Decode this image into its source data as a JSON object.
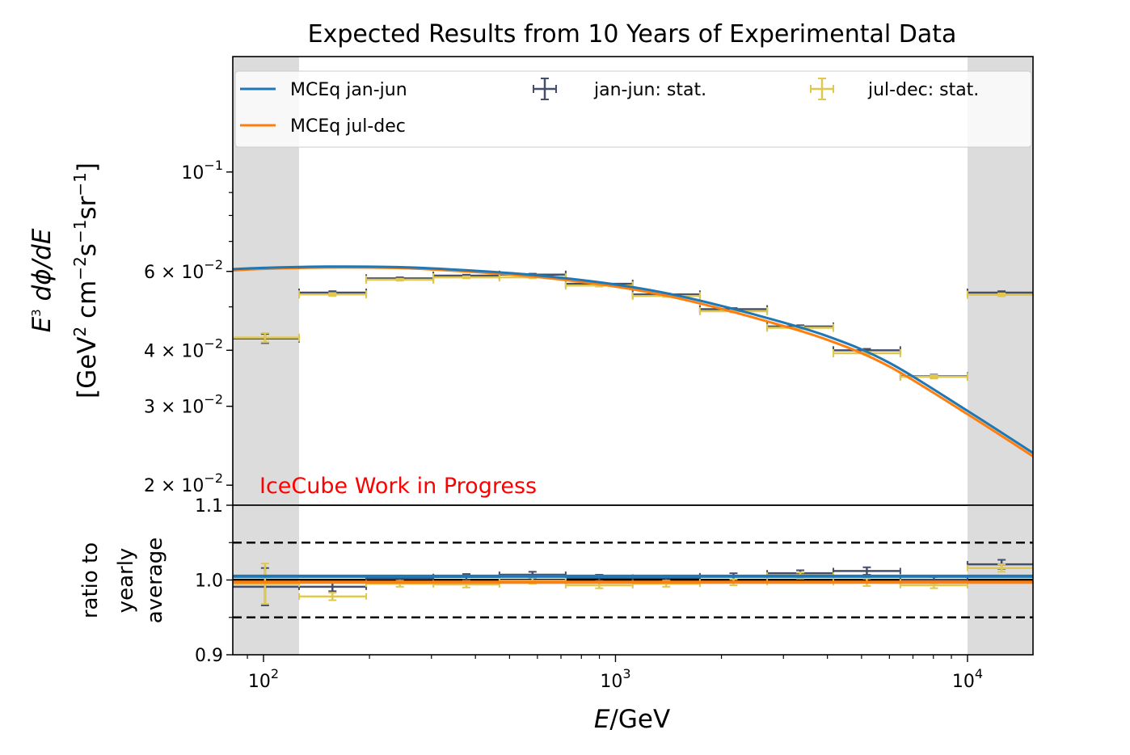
{
  "chart_data": [
    {
      "panel": "main",
      "type": "line",
      "title": "Expected Results from 10 Years of Experimental Data",
      "xlabel": "E/GeV",
      "ylabel_line1": "E³ dΦ/dE",
      "ylabel_line2": "[GeV² cm⁻²s⁻¹sr⁻¹]",
      "xscale": "log",
      "yscale": "log",
      "xlim": [
        81.8,
        15350
      ],
      "ylim": [
        0.01804,
        0.181
      ],
      "yticks": [
        {
          "value": 0.1,
          "mantissa": "",
          "base": "10",
          "exp": "−1"
        },
        {
          "value": 0.06,
          "mantissa": "6 × ",
          "base": "10",
          "exp": "−2"
        },
        {
          "value": 0.04,
          "mantissa": "4 × ",
          "base": "10",
          "exp": "−2"
        },
        {
          "value": 0.03,
          "mantissa": "3 × ",
          "base": "10",
          "exp": "−2"
        },
        {
          "value": 0.02,
          "mantissa": "2 × ",
          "base": "10",
          "exp": "−2"
        }
      ],
      "shaded_regions": [
        [
          81.8,
          126.2
        ],
        [
          10000,
          15350
        ]
      ],
      "annotation": {
        "text": "IceCube Work in Progress",
        "color": "#ff0000",
        "x": 100,
        "y": 0.0195
      },
      "legend": {
        "placement": "top",
        "columns": 3,
        "entries": [
          {
            "label": "MCEq jan-jun",
            "kind": "line",
            "color": "#1f77b4"
          },
          {
            "label": "MCEq jul-dec",
            "kind": "line",
            "color": "#ff7f0e"
          },
          {
            "label": "jan-jun: stat.",
            "kind": "errorbar",
            "color": "#454f6a"
          },
          {
            "label": "jul-dec: stat.",
            "kind": "errorbar",
            "color": "#e0c850"
          }
        ]
      },
      "series": [
        {
          "name": "MCEq jan-jun",
          "kind": "curve",
          "color": "#1f77b4",
          "x": [
            81.8,
            100,
            150,
            250,
            400,
            600,
            1000,
            1500,
            2500,
            4000,
            6000,
            10000,
            15350
          ],
          "y": [
            0.0607,
            0.0611,
            0.0615,
            0.0613,
            0.0602,
            0.0588,
            0.0561,
            0.053,
            0.048,
            0.043,
            0.0375,
            0.0293,
            0.0236
          ]
        },
        {
          "name": "MCEq jul-dec",
          "kind": "curve",
          "color": "#ff7f0e",
          "x": [
            81.8,
            100,
            150,
            250,
            400,
            600,
            1000,
            1500,
            2500,
            4000,
            6000,
            10000,
            15350
          ],
          "y": [
            0.0603,
            0.0608,
            0.0612,
            0.061,
            0.0598,
            0.0583,
            0.0555,
            0.0523,
            0.0472,
            0.0422,
            0.0368,
            0.0288,
            0.0232
          ]
        },
        {
          "name": "jan-jun: stat.",
          "kind": "errorbar",
          "color": "#454f6a",
          "x": [
            101,
            157,
            244,
            377,
            581,
            899,
            1394,
            2164,
            3349,
            5177,
            8028,
            12500
          ],
          "xlow": [
            81.3,
            126.2,
            195.8,
            303.7,
            468,
            722,
            1119,
            1737,
            2697,
            4158,
            6445,
            10000
          ],
          "xhigh": [
            126.2,
            195.8,
            303.7,
            468,
            722,
            1119,
            1737,
            2697,
            4158,
            6445,
            10000,
            15600
          ],
          "y": [
            0.0425,
            0.0538,
            0.0579,
            0.0587,
            0.059,
            0.0563,
            0.0533,
            0.0494,
            0.0452,
            0.04,
            0.035,
            0.0538
          ],
          "yerr": [
            0.001,
            0.0004,
            0.0003,
            0.0003,
            0.0003,
            0.0003,
            0.0003,
            0.0003,
            0.0003,
            0.0003,
            0.0003,
            0.0004
          ]
        },
        {
          "name": "jul-dec: stat.",
          "kind": "errorbar",
          "color": "#e0c850",
          "x": [
            101,
            157,
            244,
            377,
            581,
            899,
            1394,
            2164,
            3349,
            5177,
            8028,
            12500
          ],
          "xlow": [
            81.3,
            126.2,
            195.8,
            303.7,
            468,
            722,
            1119,
            1737,
            2697,
            4158,
            6445,
            10000
          ],
          "xhigh": [
            126.2,
            195.8,
            303.7,
            468,
            722,
            1119,
            1737,
            2697,
            4158,
            6445,
            10000,
            15600
          ],
          "y": [
            0.0427,
            0.0533,
            0.0575,
            0.0582,
            0.0582,
            0.0558,
            0.0529,
            0.0489,
            0.0449,
            0.0394,
            0.0349,
            0.0532
          ],
          "yerr": [
            0.001,
            0.0004,
            0.0003,
            0.0003,
            0.0003,
            0.0003,
            0.0003,
            0.0003,
            0.0003,
            0.0003,
            0.0003,
            0.0004
          ]
        }
      ]
    },
    {
      "panel": "ratio",
      "type": "line",
      "xlabel": "E/GeV",
      "ylabel_lines": [
        "ratio to",
        "yearly",
        "average"
      ],
      "xscale": "log",
      "xlim": [
        81.8,
        15350
      ],
      "ylim": [
        0.9,
        1.1
      ],
      "yticks": [
        "0.9",
        "1.0",
        "1.1"
      ],
      "ytick_values": [
        0.9,
        1.0,
        1.1
      ],
      "xticks": [
        {
          "value": 100,
          "base": "10",
          "exp": "2"
        },
        {
          "value": 1000,
          "base": "10",
          "exp": "3"
        },
        {
          "value": 10000,
          "base": "10",
          "exp": "4"
        }
      ],
      "reference_lines": [
        {
          "y": 1.0,
          "style": "solid",
          "color": "#000000"
        },
        {
          "y": 1.05,
          "style": "dashed",
          "color": "#000000"
        },
        {
          "y": 0.95,
          "style": "dashed",
          "color": "#000000"
        }
      ],
      "shaded_regions": [
        [
          81.8,
          126.2
        ],
        [
          10000,
          15350
        ]
      ],
      "series": [
        {
          "name": "MCEq jan-jun ratio",
          "kind": "hline",
          "color": "#1f77b4",
          "y": 1.005
        },
        {
          "name": "MCEq jul-dec ratio",
          "kind": "hline",
          "color": "#ff7f0e",
          "y": 0.997
        },
        {
          "name": "jan-jun: stat.",
          "kind": "errorbar",
          "color": "#454f6a",
          "x": [
            101,
            157,
            244,
            377,
            581,
            899,
            1394,
            2164,
            3349,
            5177,
            8028,
            12500
          ],
          "xlow": [
            81.3,
            126.2,
            195.8,
            303.7,
            468,
            722,
            1119,
            1737,
            2697,
            4158,
            6445,
            10000
          ],
          "xhigh": [
            126.2,
            195.8,
            303.7,
            468,
            722,
            1119,
            1737,
            2697,
            4158,
            6445,
            10000,
            15600
          ],
          "y": [
            0.991,
            0.991,
            1.002,
            1.004,
            1.007,
            1.003,
            1.003,
            1.005,
            1.009,
            1.012,
            1.0,
            1.021
          ],
          "yerr": [
            0.025,
            0.006,
            0.004,
            0.004,
            0.004,
            0.004,
            0.003,
            0.004,
            0.004,
            0.005,
            0.004,
            0.006
          ]
        },
        {
          "name": "jul-dec: stat.",
          "kind": "errorbar",
          "color": "#e0c850",
          "x": [
            101,
            157,
            244,
            377,
            581,
            899,
            1394,
            2164,
            3349,
            5177,
            8028,
            12500
          ],
          "xlow": [
            81.3,
            126.2,
            195.8,
            303.7,
            468,
            722,
            1119,
            1737,
            2697,
            4158,
            6445,
            10000
          ],
          "xhigh": [
            126.2,
            195.8,
            303.7,
            468,
            722,
            1119,
            1737,
            2697,
            4158,
            6445,
            10000,
            15600
          ],
          "y": [
            0.995,
            0.978,
            0.995,
            0.994,
            0.999,
            0.993,
            0.995,
            0.997,
            1.006,
            0.997,
            0.993,
            1.016
          ],
          "yerr": [
            0.027,
            0.005,
            0.004,
            0.004,
            0.004,
            0.004,
            0.004,
            0.004,
            0.004,
            0.005,
            0.004,
            0.005
          ]
        }
      ]
    }
  ]
}
